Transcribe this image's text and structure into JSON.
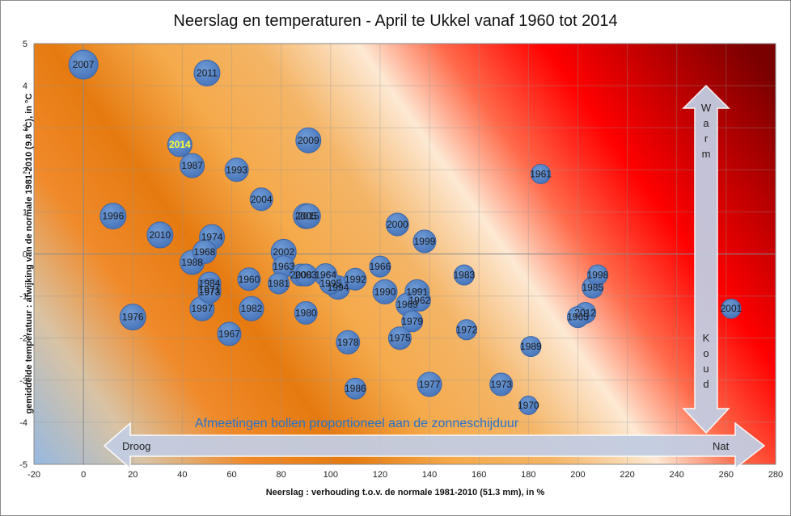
{
  "chart_data": {
    "type": "scatter",
    "title": "Neerslag en temperaturen - April te Ukkel vanaf 1960 tot 2014",
    "xlabel": "Neerslag : verhouding t.o.v. de normale 1981-2010 (51.3 mm), in %",
    "ylabel": "gemiddelde temperatuur : afwijking van de normale 1981-2010 (9.8 °C), in °C",
    "xlim": [
      -20,
      280
    ],
    "ylim": [
      -5,
      5
    ],
    "x_ticks": [
      "-20",
      "0",
      "20",
      "40",
      "60",
      "80",
      "100",
      "120",
      "140",
      "160",
      "180",
      "200",
      "220",
      "240",
      "260",
      "280"
    ],
    "y_ticks": [
      "5",
      "4",
      "3",
      "2",
      "1",
      "0",
      "-1",
      "-2",
      "-3",
      "-4",
      "-5"
    ],
    "grid": "major gridlines on both axes",
    "bubble_note": "Afmeetingen bollen proportioneel aan de zonneschijduur",
    "highlight_year": "2014",
    "arrows": {
      "horizontal_left": "Droog",
      "horizontal_right": "Nat",
      "vertical_top": "Warm",
      "vertical_bottom": "Koud"
    },
    "points": [
      {
        "label": "2007",
        "x": 0,
        "y": 4.5,
        "size": 1.0
      },
      {
        "label": "2011",
        "x": 50,
        "y": 4.3,
        "size": 0.8
      },
      {
        "label": "2014",
        "x": 39,
        "y": 2.6,
        "size": 0.7
      },
      {
        "label": "2009",
        "x": 91,
        "y": 2.7,
        "size": 0.75
      },
      {
        "label": "1987",
        "x": 44,
        "y": 2.1,
        "size": 0.7
      },
      {
        "label": "1993",
        "x": 62,
        "y": 2.0,
        "size": 0.65
      },
      {
        "label": "1961",
        "x": 185,
        "y": 1.9,
        "size": 0.4
      },
      {
        "label": "2004",
        "x": 72,
        "y": 1.3,
        "size": 0.6
      },
      {
        "label": "1996",
        "x": 12,
        "y": 0.9,
        "size": 0.8
      },
      {
        "label": "2005",
        "x": 90,
        "y": 0.9,
        "size": 0.75
      },
      {
        "label": "2015",
        "x": 91,
        "y": 0.9,
        "size": 0.7
      },
      {
        "label": "2000",
        "x": 127,
        "y": 0.7,
        "size": 0.6
      },
      {
        "label": "2010",
        "x": 31,
        "y": 0.45,
        "size": 0.8
      },
      {
        "label": "1974",
        "x": 52,
        "y": 0.4,
        "size": 0.75
      },
      {
        "label": "1999",
        "x": 138,
        "y": 0.3,
        "size": 0.6
      },
      {
        "label": "1968",
        "x": 49,
        "y": 0.05,
        "size": 0.65
      },
      {
        "label": "2002",
        "x": 81,
        "y": 0.05,
        "size": 0.75
      },
      {
        "label": "1988",
        "x": 44,
        "y": -0.2,
        "size": 0.7
      },
      {
        "label": "1963",
        "x": 81,
        "y": -0.3,
        "size": 0.55
      },
      {
        "label": "1966",
        "x": 120,
        "y": -0.3,
        "size": 0.5
      },
      {
        "label": "2008",
        "x": 88,
        "y": -0.5,
        "size": 0.55
      },
      {
        "label": "2003",
        "x": 90,
        "y": -0.5,
        "size": 0.55
      },
      {
        "label": "1964",
        "x": 98,
        "y": -0.5,
        "size": 0.6
      },
      {
        "label": "1983",
        "x": 154,
        "y": -0.5,
        "size": 0.45
      },
      {
        "label": "1998",
        "x": 208,
        "y": -0.5,
        "size": 0.45
      },
      {
        "label": "1960",
        "x": 67,
        "y": -0.6,
        "size": 0.6
      },
      {
        "label": "1992",
        "x": 110,
        "y": -0.6,
        "size": 0.55
      },
      {
        "label": "1995",
        "x": 100,
        "y": -0.7,
        "size": 0.55
      },
      {
        "label": "1981",
        "x": 79,
        "y": -0.7,
        "size": 0.5
      },
      {
        "label": "1984",
        "x": 51,
        "y": -0.7,
        "size": 0.6
      },
      {
        "label": "1994",
        "x": 103,
        "y": -0.8,
        "size": 0.65
      },
      {
        "label": "1985",
        "x": 206,
        "y": -0.8,
        "size": 0.5
      },
      {
        "label": "1971",
        "x": 51,
        "y": -0.85,
        "size": 0.6
      },
      {
        "label": "1990",
        "x": 122,
        "y": -0.9,
        "size": 0.7
      },
      {
        "label": "1991",
        "x": 135,
        "y": -0.9,
        "size": 0.7
      },
      {
        "label": "1973b",
        "x": 51,
        "y": -0.9,
        "size": 0.6
      },
      {
        "label": "1962",
        "x": 136,
        "y": -1.1,
        "size": 0.55
      },
      {
        "label": "1969",
        "x": 131,
        "y": -1.2,
        "size": 0.6
      },
      {
        "label": "1997",
        "x": 48,
        "y": -1.3,
        "size": 0.7
      },
      {
        "label": "1982",
        "x": 68,
        "y": -1.3,
        "size": 0.7
      },
      {
        "label": "2001",
        "x": 262,
        "y": -1.3,
        "size": 0.4
      },
      {
        "label": "2012",
        "x": 203,
        "y": -1.4,
        "size": 0.5
      },
      {
        "label": "1965",
        "x": 200,
        "y": -1.5,
        "size": 0.5
      },
      {
        "label": "1980",
        "x": 90,
        "y": -1.4,
        "size": 0.6
      },
      {
        "label": "1976",
        "x": 20,
        "y": -1.5,
        "size": 0.8
      },
      {
        "label": "1979",
        "x": 133,
        "y": -1.6,
        "size": 0.5
      },
      {
        "label": "1972",
        "x": 155,
        "y": -1.8,
        "size": 0.45
      },
      {
        "label": "1967",
        "x": 59,
        "y": -1.9,
        "size": 0.65
      },
      {
        "label": "1975",
        "x": 128,
        "y": -2.0,
        "size": 0.6
      },
      {
        "label": "1978",
        "x": 107,
        "y": -2.1,
        "size": 0.65
      },
      {
        "label": "1989",
        "x": 181,
        "y": -2.2,
        "size": 0.45
      },
      {
        "label": "1977",
        "x": 140,
        "y": -3.1,
        "size": 0.7
      },
      {
        "label": "1973",
        "x": 169,
        "y": -3.1,
        "size": 0.6
      },
      {
        "label": "1986",
        "x": 110,
        "y": -3.2,
        "size": 0.5
      },
      {
        "label": "1970",
        "x": 180,
        "y": -3.6,
        "size": 0.35
      }
    ]
  }
}
